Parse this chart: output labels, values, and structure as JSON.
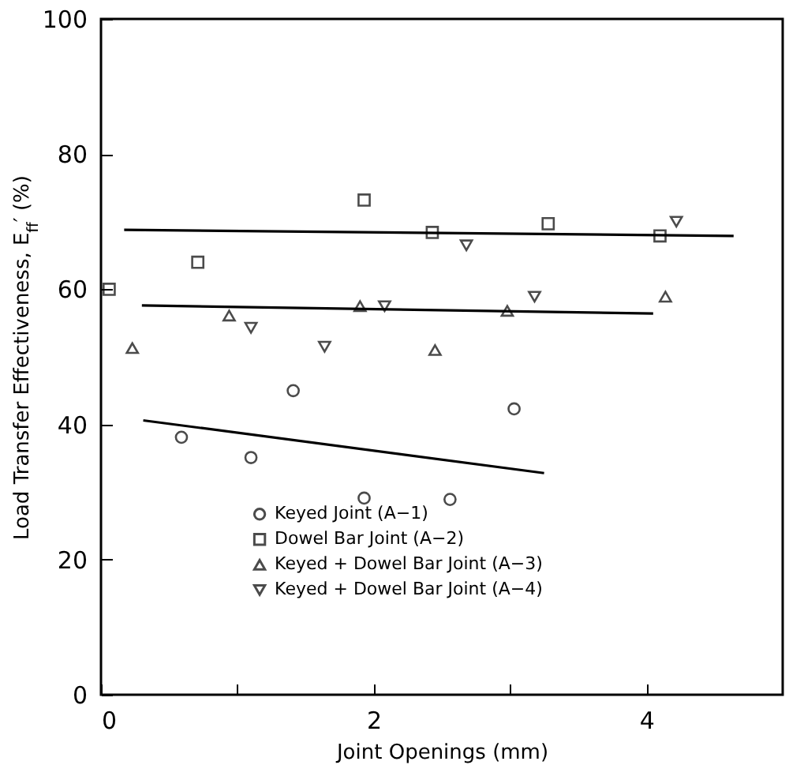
{
  "chart_data": {
    "type": "scatter",
    "xlabel": "Joint Openings (mm)",
    "ylabel": "Load Transfer Effectiveness, E$_{ff}$′ (%)",
    "xlim": [
      0,
      5
    ],
    "xticks": [
      0,
      {
        "value": 1,
        "label": null
      },
      2,
      {
        "value": 3,
        "label": null
      },
      4
    ],
    "ylim": [
      0,
      100
    ],
    "yticks": [
      0,
      20,
      40,
      60,
      80,
      100
    ],
    "grid": false,
    "legend": "bottom",
    "series": [
      {
        "name": "Keyed Joint (A−1)",
        "color": "#000000",
        "marker": "circle",
        "x": [
          0.59,
          1.1,
          1.41,
          1.93,
          2.56,
          3.03
        ],
        "values": [
          38.1,
          35.1,
          45.0,
          29.1,
          28.9,
          42.3
        ]
      },
      {
        "name": "Dowel Bar Joint (A−2)",
        "color": "#000000",
        "marker": "square",
        "x": [
          0.06,
          0.71,
          1.93,
          2.43,
          3.28,
          4.1
        ],
        "values": [
          60.0,
          64.0,
          73.2,
          68.4,
          69.7,
          67.9
        ]
      },
      {
        "name": "Keyed + Dowel Bar Joint (A−3)",
        "color": "#000000",
        "marker": "triangle",
        "x": [
          0.23,
          0.94,
          1.9,
          2.45,
          2.98,
          4.14
        ],
        "values": [
          51.3,
          56.1,
          57.5,
          51.0,
          56.8,
          58.9
        ]
      },
      {
        "name": "Keyed + Dowel Bar Joint (A−4)",
        "color": "#000000",
        "marker": "triangle-down",
        "x": [
          1.1,
          1.64,
          2.08,
          2.68,
          3.18,
          4.22
        ],
        "values": [
          54.3,
          51.5,
          57.5,
          66.5,
          58.9,
          70.0
        ]
      },
      {
        "type": "line",
        "color": "#000000",
        "x": [
          0.31,
          3.25
        ],
        "values": [
          40.6,
          32.8
        ]
      },
      {
        "type": "line",
        "color": "#000000",
        "x": [
          0.17,
          4.64
        ],
        "values": [
          68.8,
          67.9
        ]
      },
      {
        "type": "line",
        "color": "#000000",
        "x": [
          0.3,
          4.05
        ],
        "values": [
          57.6,
          56.4
        ]
      }
    ]
  }
}
